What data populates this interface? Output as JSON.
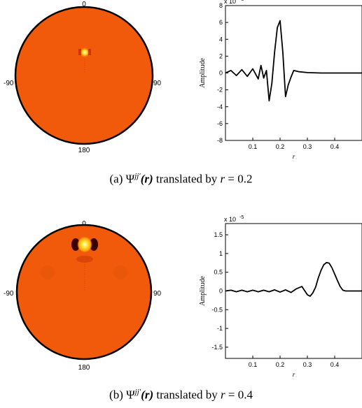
{
  "panels": [
    {
      "id": "a",
      "polar": {
        "top_label": "0",
        "left_label": "-90",
        "right_label": "90",
        "bottom_label": "180",
        "background_color": "#f05a0a",
        "blob": "small"
      },
      "caption": {
        "prefix": "(a)",
        "psi": "Ψ",
        "sup": "jj′",
        "arg": "(r)",
        "middle": "translated by",
        "var": "r",
        "eq": "= 0.2"
      },
      "chart": {
        "scale_note": "x 10",
        "scale_exp": "-5",
        "ylabel": "Amplitude",
        "xlabel": "r",
        "yticks": [
          "8",
          "6",
          "4",
          "2",
          "0",
          "-2",
          "-4",
          "-6",
          "-8"
        ],
        "xticks": [
          "0.1",
          "0.2",
          "0.3",
          "0.4"
        ]
      }
    },
    {
      "id": "b",
      "polar": {
        "top_label": "0",
        "left_label": "-90",
        "right_label": "90",
        "bottom_label": "180",
        "background_color": "#f05a0a",
        "blob": "large"
      },
      "caption": {
        "prefix": "(b)",
        "psi": "Ψ",
        "sup": "jj′",
        "arg": "(r)",
        "middle": "translated by",
        "var": "r",
        "eq": "= 0.4"
      },
      "chart": {
        "scale_note": "x 10",
        "scale_exp": "-5",
        "ylabel": "Amplitude",
        "xlabel": "r",
        "yticks": [
          "1.5",
          "1",
          "0.5",
          "0",
          "-0.5",
          "-1",
          "-1.5"
        ],
        "xticks": [
          "0.1",
          "0.2",
          "0.3",
          "0.4"
        ]
      }
    }
  ],
  "chart_data": [
    {
      "type": "line",
      "xlabel": "r",
      "ylabel": "Amplitude",
      "y_scale_note": "x 10^-5",
      "xlim": [
        0.0,
        0.5
      ],
      "ylim": [
        -8,
        8
      ],
      "yticks": [
        -8,
        -6,
        -4,
        -2,
        0,
        2,
        4,
        6,
        8
      ],
      "xticks": [
        0.1,
        0.2,
        0.3,
        0.4
      ],
      "series": [
        {
          "x": [
            0.0,
            0.02,
            0.04,
            0.06,
            0.08,
            0.1,
            0.12,
            0.13,
            0.14,
            0.15,
            0.16,
            0.17,
            0.18,
            0.19,
            0.2,
            0.21,
            0.22,
            0.23,
            0.24,
            0.25,
            0.27,
            0.3,
            0.35,
            0.4,
            0.45,
            0.5
          ],
          "y": [
            0.0,
            0.3,
            -0.3,
            0.4,
            -0.4,
            0.5,
            -0.7,
            0.9,
            -0.6,
            0.3,
            -3.3,
            -1.2,
            2.5,
            5.4,
            6.2,
            2.5,
            -2.8,
            -1.4,
            -0.5,
            0.3,
            0.15,
            0.05,
            0.0,
            0.0,
            0.0,
            0.0
          ]
        }
      ]
    },
    {
      "type": "line",
      "xlabel": "r",
      "ylabel": "Amplitude",
      "y_scale_note": "x 10^-5",
      "xlim": [
        0.0,
        0.5
      ],
      "ylim": [
        -1.8,
        1.8
      ],
      "yticks": [
        -1.5,
        -1,
        -0.5,
        0,
        0.5,
        1,
        1.5
      ],
      "xticks": [
        0.1,
        0.2,
        0.3,
        0.4
      ],
      "series": [
        {
          "x": [
            0.0,
            0.02,
            0.04,
            0.06,
            0.08,
            0.1,
            0.12,
            0.14,
            0.16,
            0.18,
            0.2,
            0.22,
            0.24,
            0.26,
            0.28,
            0.3,
            0.31,
            0.32,
            0.33,
            0.34,
            0.35,
            0.36,
            0.37,
            0.38,
            0.39,
            0.4,
            0.41,
            0.42,
            0.43,
            0.44,
            0.46,
            0.5
          ],
          "y": [
            0.0,
            0.02,
            -0.02,
            0.02,
            -0.02,
            0.02,
            -0.02,
            0.02,
            -0.02,
            0.03,
            -0.03,
            0.03,
            -0.04,
            0.06,
            0.12,
            -0.1,
            -0.14,
            -0.05,
            0.1,
            0.35,
            0.55,
            0.7,
            0.76,
            0.74,
            0.62,
            0.45,
            0.28,
            0.12,
            0.02,
            0.0,
            0.0,
            0.0
          ]
        }
      ]
    }
  ]
}
